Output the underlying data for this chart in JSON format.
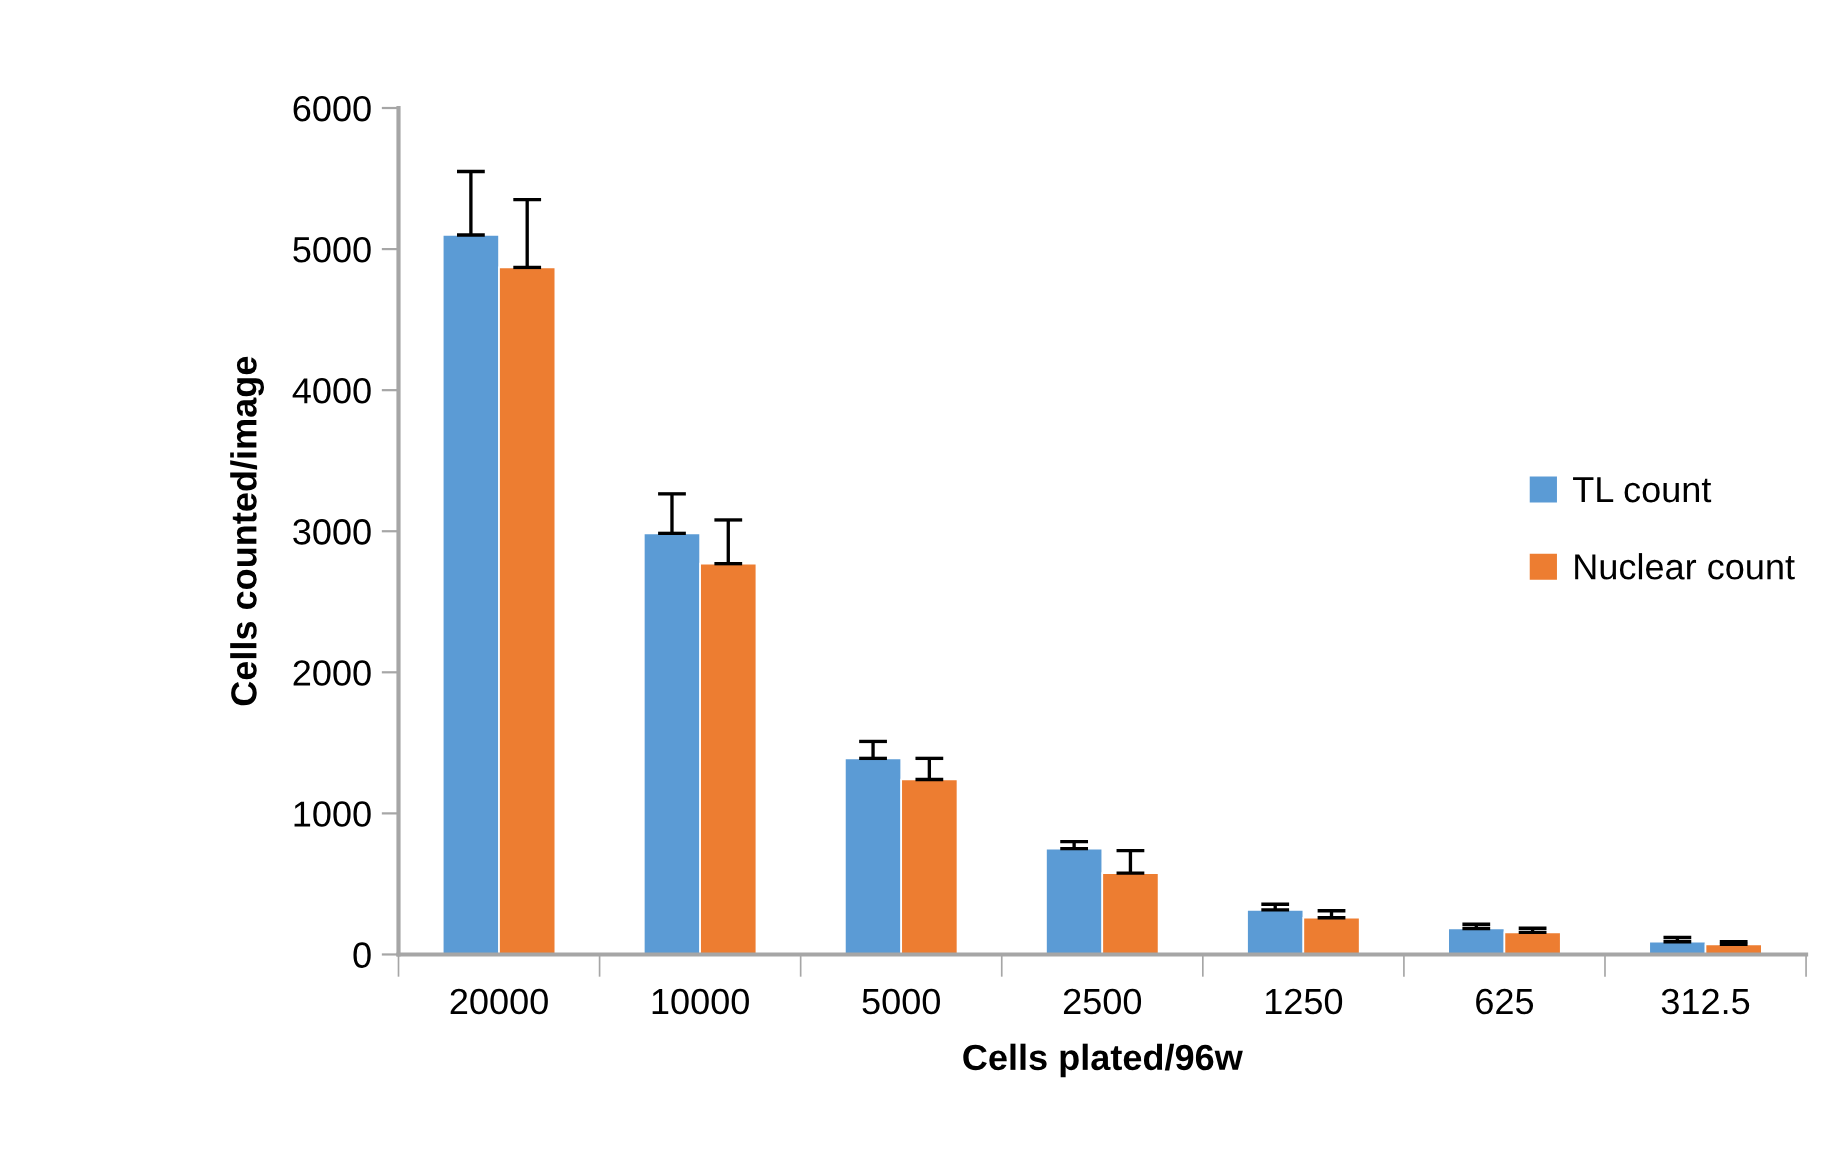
{
  "chart_data": {
    "type": "bar",
    "xlabel": "Cells plated/96w",
    "ylabel": "Cells counted/image",
    "categories": [
      "20000",
      "10000",
      "5000",
      "2500",
      "1250",
      "625",
      "312.5"
    ],
    "series": [
      {
        "name": "TL count",
        "color": "#5b9bd5",
        "values": [
          5100,
          2985,
          1390,
          750,
          316,
          184,
          90
        ],
        "errors": [
          450,
          280,
          120,
          50,
          40,
          30,
          30
        ]
      },
      {
        "name": "Nuclear count",
        "color": "#ed7d31",
        "values": [
          4870,
          2770,
          1240,
          576,
          260,
          156,
          71
        ],
        "errors": [
          480,
          310,
          150,
          160,
          50,
          30,
          20
        ]
      }
    ],
    "ylim": [
      0,
      6000
    ],
    "yticks": [
      0,
      1000,
      2000,
      3000,
      4000,
      5000,
      6000
    ],
    "grid": false,
    "legend": "right"
  }
}
